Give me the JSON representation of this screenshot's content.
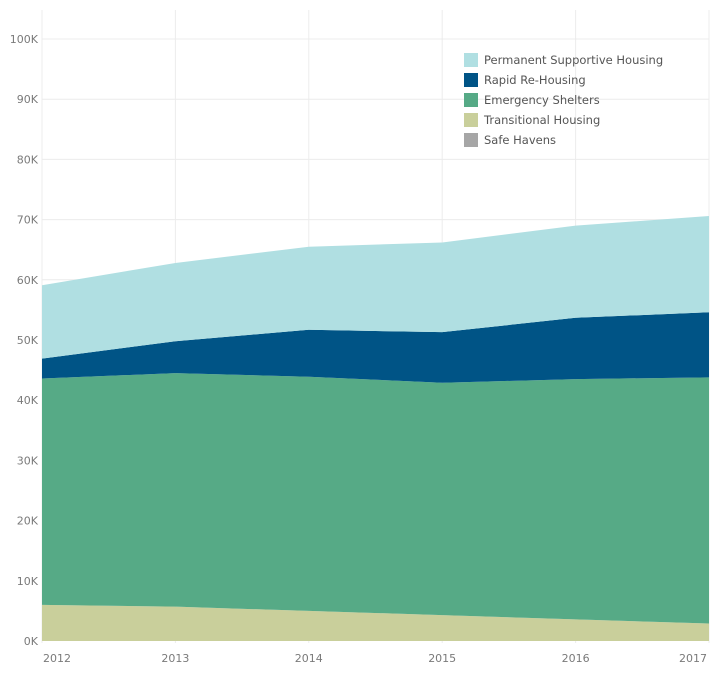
{
  "chart_data": {
    "type": "area",
    "stacked": true,
    "title": "",
    "xlabel": "",
    "ylabel": "",
    "x": [
      "2012",
      "2013",
      "2014",
      "2015",
      "2016",
      "2017"
    ],
    "ylim": [
      0,
      100000
    ],
    "yticks": [
      {
        "value": 0,
        "label": "0K"
      },
      {
        "value": 10000,
        "label": "10K"
      },
      {
        "value": 20000,
        "label": "20K"
      },
      {
        "value": 30000,
        "label": "30K"
      },
      {
        "value": 40000,
        "label": "40K"
      },
      {
        "value": 50000,
        "label": "50K"
      },
      {
        "value": 60000,
        "label": "60K"
      },
      {
        "value": 70000,
        "label": "70K"
      },
      {
        "value": 80000,
        "label": "80K"
      },
      {
        "value": 90000,
        "label": "90K"
      },
      {
        "value": 100000,
        "label": "100K"
      }
    ],
    "grid": true,
    "legend_position": "top-right",
    "series": [
      {
        "name": "Safe Havens",
        "color": "#a6a6a6",
        "values": [
          0,
          0,
          0,
          0,
          0,
          0
        ]
      },
      {
        "name": "Transitional Housing",
        "color": "#c9cf9b",
        "values": [
          6000,
          5700,
          5000,
          4300,
          3600,
          2900
        ]
      },
      {
        "name": "Emergency Shelters",
        "color": "#56aa86",
        "values": [
          37600,
          38800,
          38900,
          38600,
          39900,
          40900
        ]
      },
      {
        "name": "Rapid Re-Housing",
        "color": "#005486",
        "values": [
          3300,
          5300,
          7800,
          8400,
          10200,
          10800
        ]
      },
      {
        "name": "Permanent Supportive Housing",
        "color": "#b0dfe2",
        "values": [
          12200,
          13000,
          13800,
          14900,
          15300,
          16000
        ]
      }
    ],
    "legend": [
      {
        "name": "Permanent Supportive Housing",
        "color": "#b0dfe2"
      },
      {
        "name": "Rapid Re-Housing",
        "color": "#005486"
      },
      {
        "name": "Emergency Shelters",
        "color": "#56aa86"
      },
      {
        "name": "Transitional Housing",
        "color": "#c9cf9b"
      },
      {
        "name": "Safe Havens",
        "color": "#a6a6a6"
      }
    ]
  }
}
